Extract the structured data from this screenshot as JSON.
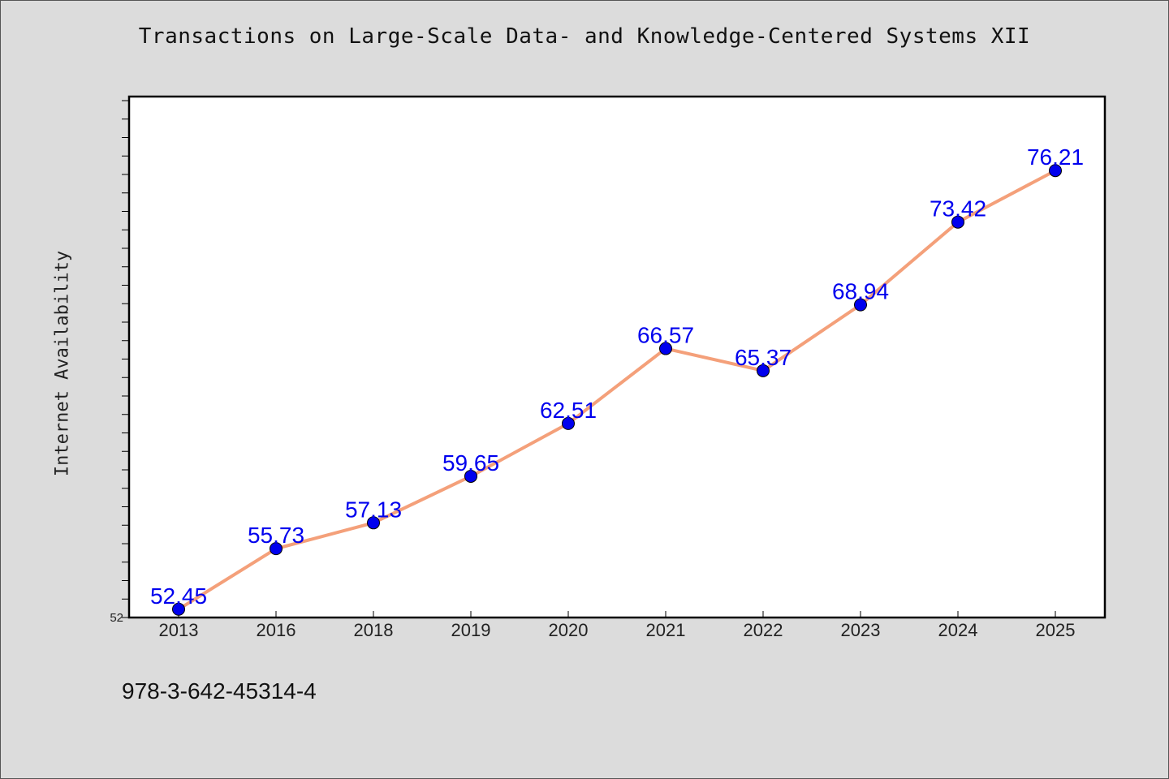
{
  "chart_data": {
    "type": "line",
    "title": "Transactions on Large-Scale Data- and Knowledge-Centered Systems XII",
    "ylabel": "Internet Availability",
    "xlabel": "",
    "categories": [
      "2013",
      "2016",
      "2018",
      "2019",
      "2020",
      "2021",
      "2022",
      "2023",
      "2024",
      "2025"
    ],
    "series": [
      {
        "values": [
          52.45,
          55.73,
          57.13,
          59.65,
          62.51,
          66.57,
          65.37,
          68.94,
          73.42,
          76.21
        ],
        "labels": [
          "52.45",
          "55.73",
          "57.13",
          "59.65",
          "62.51",
          "66.57",
          "65.37",
          "68.94",
          "73.42",
          "76.21"
        ],
        "line_color": "#f4a07a",
        "marker_color": "#0000ee"
      }
    ],
    "ylim": [
      52,
      80
    ],
    "ytick_labels": [
      "52"
    ],
    "label_color": "#0000ee",
    "grid": false
  },
  "footer": {
    "isbn": "978-3-642-45314-4"
  }
}
